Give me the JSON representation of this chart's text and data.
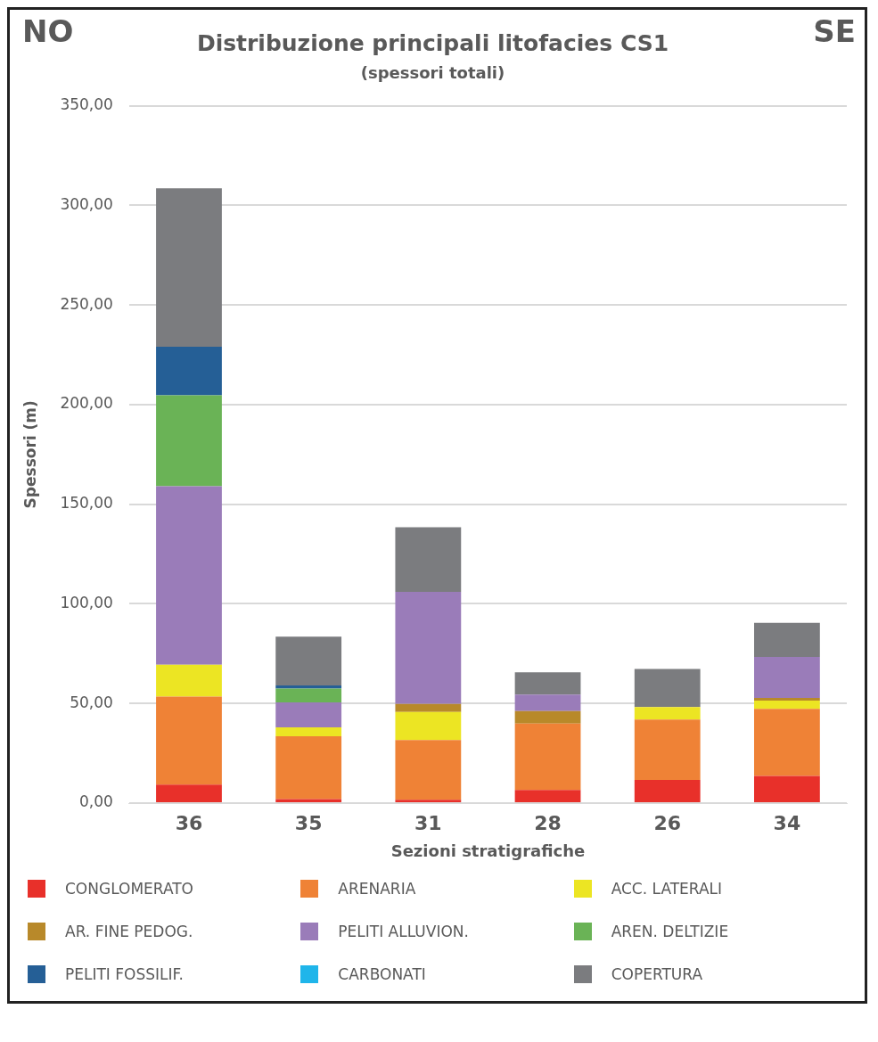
{
  "chart_data": {
    "type": "bar",
    "title": "Distribuzione principali litofacies CS1",
    "subtitle": "(spessori totali)",
    "annotations": [
      "NO",
      "SE"
    ],
    "xlabel": "Sezioni stratigrafiche",
    "ylabel": "Spessori (m)",
    "categories": [
      "36",
      "35",
      "31",
      "28",
      "26",
      "34"
    ],
    "stacked": true,
    "grid": "y",
    "legend": "bottom",
    "ylim": [
      0,
      350
    ],
    "yticks": [
      {
        "value": 0,
        "label": "0,00"
      },
      {
        "value": 50,
        "label": "50,00"
      },
      {
        "value": 100,
        "label": "100,00"
      },
      {
        "value": 150,
        "label": "150,00"
      },
      {
        "value": 200,
        "label": "200,00"
      },
      {
        "value": 250,
        "label": "250,00"
      },
      {
        "value": 300,
        "label": "300,00"
      },
      {
        "value": 350,
        "label": "350,00"
      }
    ],
    "series": [
      {
        "name": "CONGLOMERATO",
        "color": "#e8302a",
        "values": [
          9.3,
          2,
          1.7,
          6.6,
          11.6,
          13.6
        ]
      },
      {
        "name": "ARENARIA",
        "color": "#ef8236",
        "values": [
          44.2,
          31.5,
          29.9,
          33.3,
          30.3,
          33.7
        ]
      },
      {
        "name": "ACC. LATERALI",
        "color": "#ece523",
        "values": [
          16,
          4.5,
          14.1,
          0,
          6.3,
          4.2
        ]
      },
      {
        "name": "AR. FINE PEDOG.",
        "color": "#b8892a",
        "values": [
          0,
          0,
          4.1,
          6.3,
          0,
          1.3
        ]
      },
      {
        "name": "PELITI ALLUVION.",
        "color": "#9a7cb9",
        "values": [
          89.5,
          12.5,
          56.2,
          8.3,
          0,
          20.6
        ]
      },
      {
        "name": "AREN. DELTIZIE",
        "color": "#6ab356",
        "values": [
          45.7,
          7,
          0,
          0,
          0,
          0
        ]
      },
      {
        "name": "PELITI FOSSILIF.",
        "color": "#255f96",
        "values": [
          24.3,
          1.5,
          0,
          0,
          0,
          0
        ]
      },
      {
        "name": "CARBONATI",
        "color": "#1fb5ea",
        "values": [
          0,
          0,
          0,
          0,
          0,
          0
        ]
      },
      {
        "name": "COPERTURA",
        "color": "#7b7c7f",
        "values": [
          79.6,
          24.5,
          32.5,
          11.1,
          19.1,
          17.1
        ]
      }
    ]
  }
}
